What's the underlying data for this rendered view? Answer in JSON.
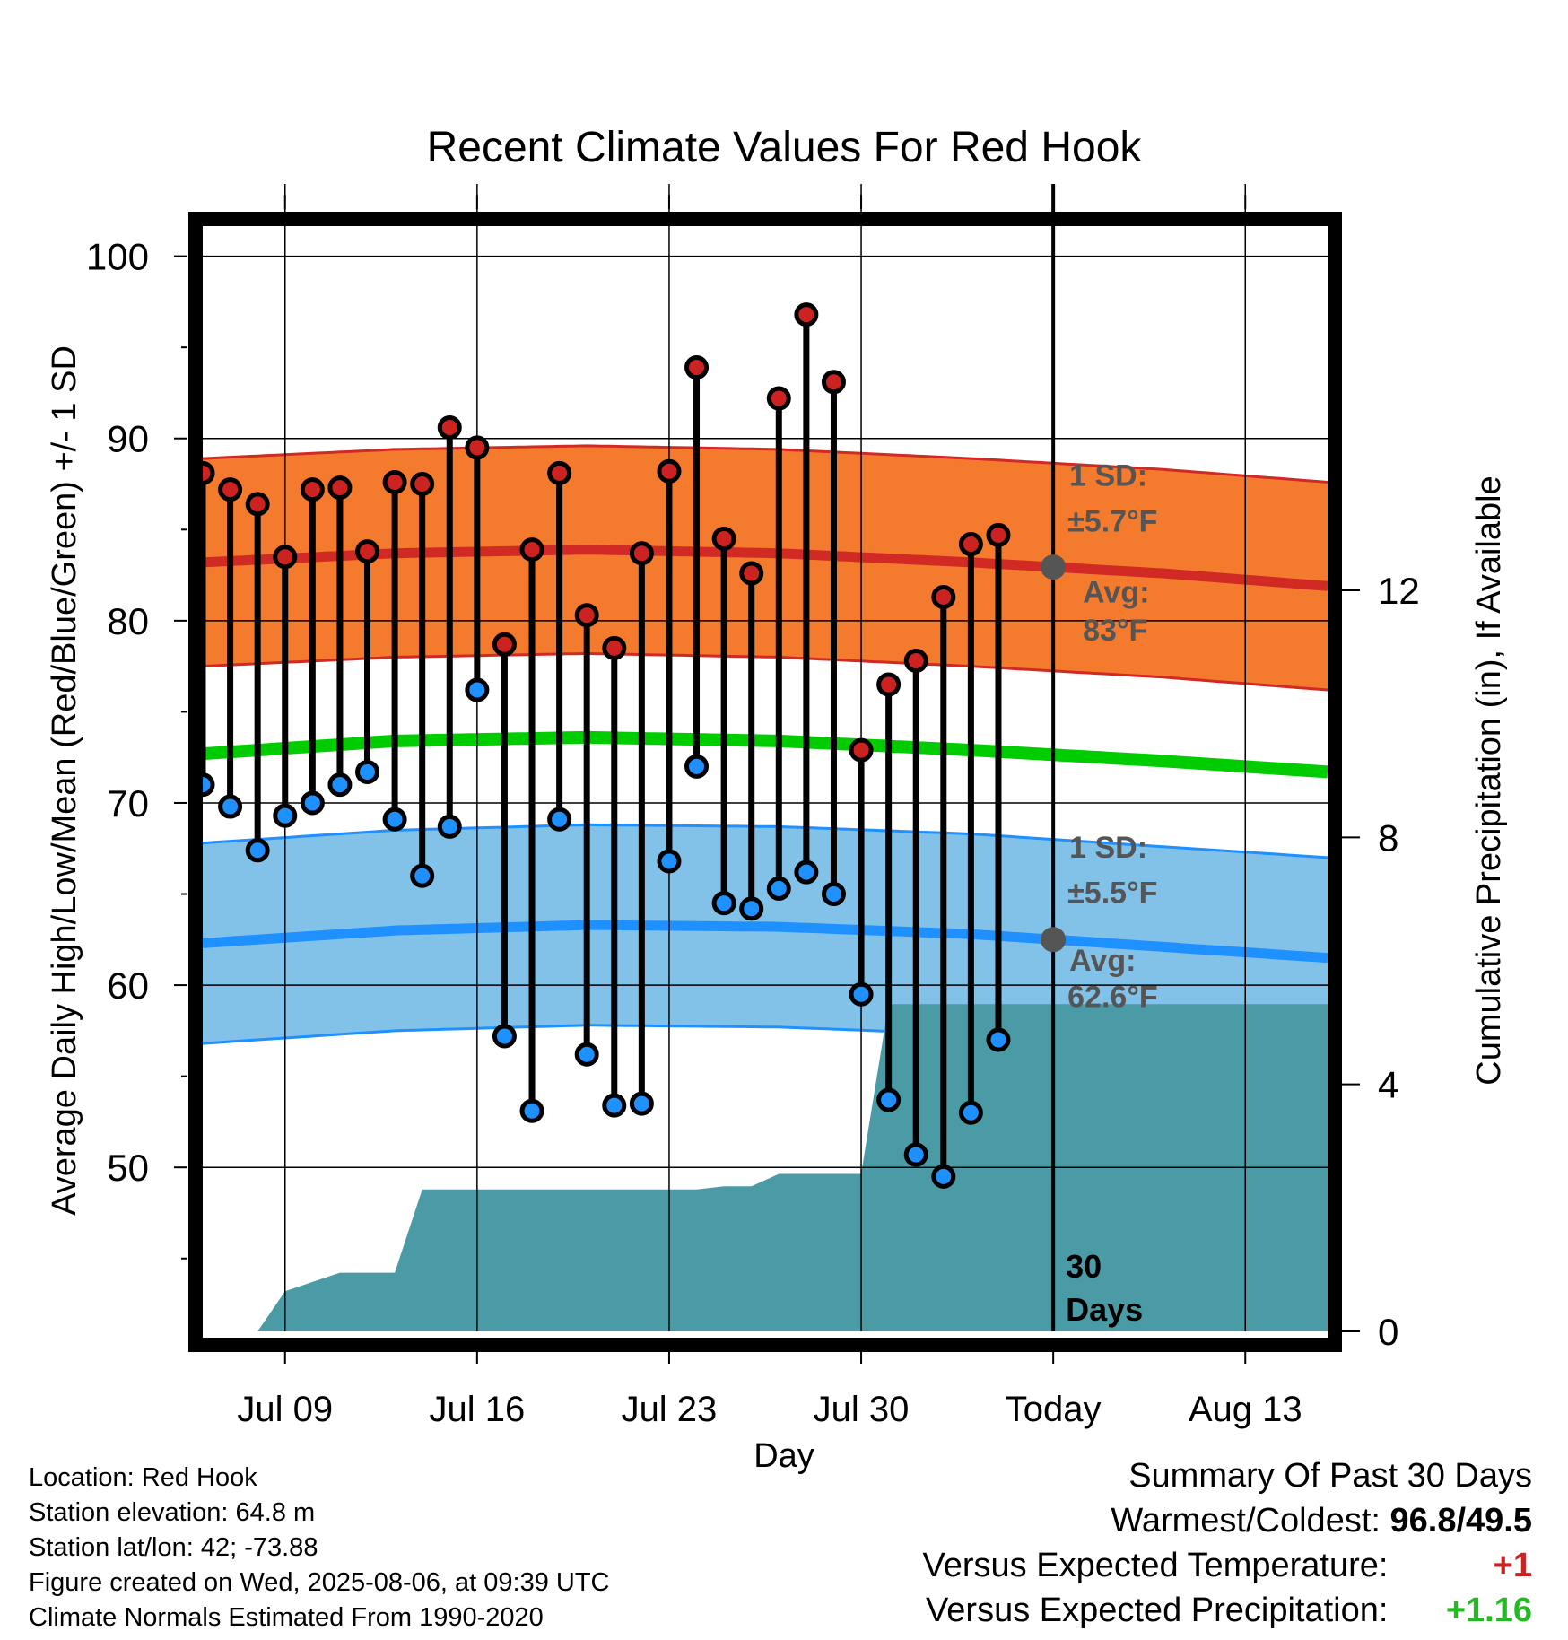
{
  "chart_data": {
    "type": "line",
    "title": "Recent Climate Values For Red Hook",
    "xlabel": "Day",
    "ylabel": "Average Daily High/Low/Mean (Red/Blue/Green) +/- 1 SD",
    "y2label": "Cumulative Precipitation (in), If Available",
    "x_start": "2025-07-06",
    "x_end": "2025-08-16",
    "today": "2025-08-06",
    "x_tick_labels": [
      {
        "date": "2025-07-09",
        "label": "Jul 09"
      },
      {
        "date": "2025-07-16",
        "label": "Jul 16"
      },
      {
        "date": "2025-07-23",
        "label": "Jul 23"
      },
      {
        "date": "2025-07-30",
        "label": "Jul 30"
      },
      {
        "date": "2025-08-06",
        "label": "Today"
      },
      {
        "date": "2025-08-13",
        "label": "Aug 13"
      }
    ],
    "ylim": [
      41,
      102
    ],
    "y_ticks": [
      50,
      60,
      70,
      80,
      90,
      100
    ],
    "y2lim": [
      0,
      18
    ],
    "y2_ticks": [
      0,
      4,
      8,
      12
    ],
    "grid": true,
    "observed_dates": [
      "2025-07-06",
      "2025-07-07",
      "2025-07-08",
      "2025-07-09",
      "2025-07-10",
      "2025-07-11",
      "2025-07-12",
      "2025-07-13",
      "2025-07-14",
      "2025-07-15",
      "2025-07-16",
      "2025-07-17",
      "2025-07-18",
      "2025-07-19",
      "2025-07-20",
      "2025-07-21",
      "2025-07-22",
      "2025-07-23",
      "2025-07-24",
      "2025-07-25",
      "2025-07-26",
      "2025-07-27",
      "2025-07-28",
      "2025-07-29",
      "2025-07-30",
      "2025-07-31",
      "2025-08-01",
      "2025-08-02",
      "2025-08-03",
      "2025-08-04",
      "2025-08-05"
    ],
    "series": [
      {
        "name": "Daily High",
        "color": "#cc2222",
        "values": [
          88.1,
          87.2,
          86.4,
          83.5,
          87.2,
          87.3,
          83.8,
          87.6,
          87.5,
          90.6,
          89.5,
          78.7,
          83.9,
          88.1,
          80.3,
          78.5,
          83.7,
          88.2,
          93.9,
          84.5,
          82.6,
          92.2,
          96.8,
          93.1,
          72.9,
          76.5,
          77.8,
          81.3,
          84.2,
          84.7,
          null
        ]
      },
      {
        "name": "Daily Low",
        "color": "#1e90ff",
        "values": [
          71.0,
          69.8,
          67.4,
          69.3,
          70.0,
          71.0,
          71.7,
          69.1,
          66.0,
          68.7,
          76.2,
          57.2,
          53.1,
          69.1,
          56.2,
          53.4,
          53.5,
          66.8,
          72.0,
          64.5,
          64.2,
          65.3,
          66.2,
          65.0,
          59.5,
          53.7,
          50.7,
          49.5,
          53.0,
          57.0,
          null
        ]
      },
      {
        "name": "Cumulative Precipitation",
        "color": "#4a9ba5",
        "axis": "right",
        "values": [
          0,
          0,
          0,
          0.65,
          0.8,
          0.95,
          0.95,
          0.95,
          2.3,
          2.3,
          2.3,
          2.3,
          2.3,
          2.3,
          2.3,
          2.3,
          2.3,
          2.3,
          2.3,
          2.35,
          2.35,
          2.55,
          2.55,
          2.55,
          2.55,
          5.3,
          5.3,
          5.3,
          5.3,
          5.3,
          5.3
        ]
      }
    ],
    "normals": {
      "dates": [
        "2025-07-06",
        "2025-07-13",
        "2025-07-20",
        "2025-07-27",
        "2025-08-03",
        "2025-08-10",
        "2025-08-16"
      ],
      "high_avg": [
        83.2,
        83.7,
        83.9,
        83.7,
        83.2,
        82.6,
        81.9
      ],
      "low_avg": [
        62.3,
        63.0,
        63.3,
        63.2,
        62.8,
        62.1,
        61.5
      ],
      "mean_avg": [
        72.7,
        73.4,
        73.6,
        73.4,
        72.9,
        72.3,
        71.7
      ],
      "high_sd": 5.7,
      "low_sd": 5.5
    },
    "annotations": {
      "high_sd_label": "1 SD:",
      "high_sd_value": "±5.7°F",
      "high_avg_label": "Avg:",
      "high_avg_value": "83°F",
      "low_sd_label": "1 SD:",
      "low_sd_value": "±5.5°F",
      "low_avg_label": "Avg:",
      "low_avg_value": "62.6°F",
      "period_line1": "30",
      "period_line2": "Days"
    },
    "colors": {
      "high_band": "#f47b2e",
      "high_line": "#d12a25",
      "low_band": "#82c1e8",
      "low_line": "#1e90ff",
      "mean_line": "#00cc00",
      "precip_fill": "#4a9ba5",
      "annotation": "#555555"
    }
  },
  "footer": {
    "location": "Location: Red Hook",
    "elevation": "Station elevation: 64.8 m",
    "latlon": "Station lat/lon: 42; -73.88",
    "created": "Figure created on Wed, 2025-08-06, at 09:39 UTC",
    "normals": "Climate Normals Estimated From 1990-2020"
  },
  "summary": {
    "heading": "Summary Of Past 30 Days",
    "warmest_label": "Warmest/Coldest:",
    "warmest_value": "96.8/49.5",
    "temp_label": "Versus Expected Temperature:",
    "temp_value": "+1",
    "temp_color": "#cc2222",
    "precip_label": "Versus Expected Precipitation:",
    "precip_value": "+1.16",
    "precip_color": "#22bb22"
  }
}
